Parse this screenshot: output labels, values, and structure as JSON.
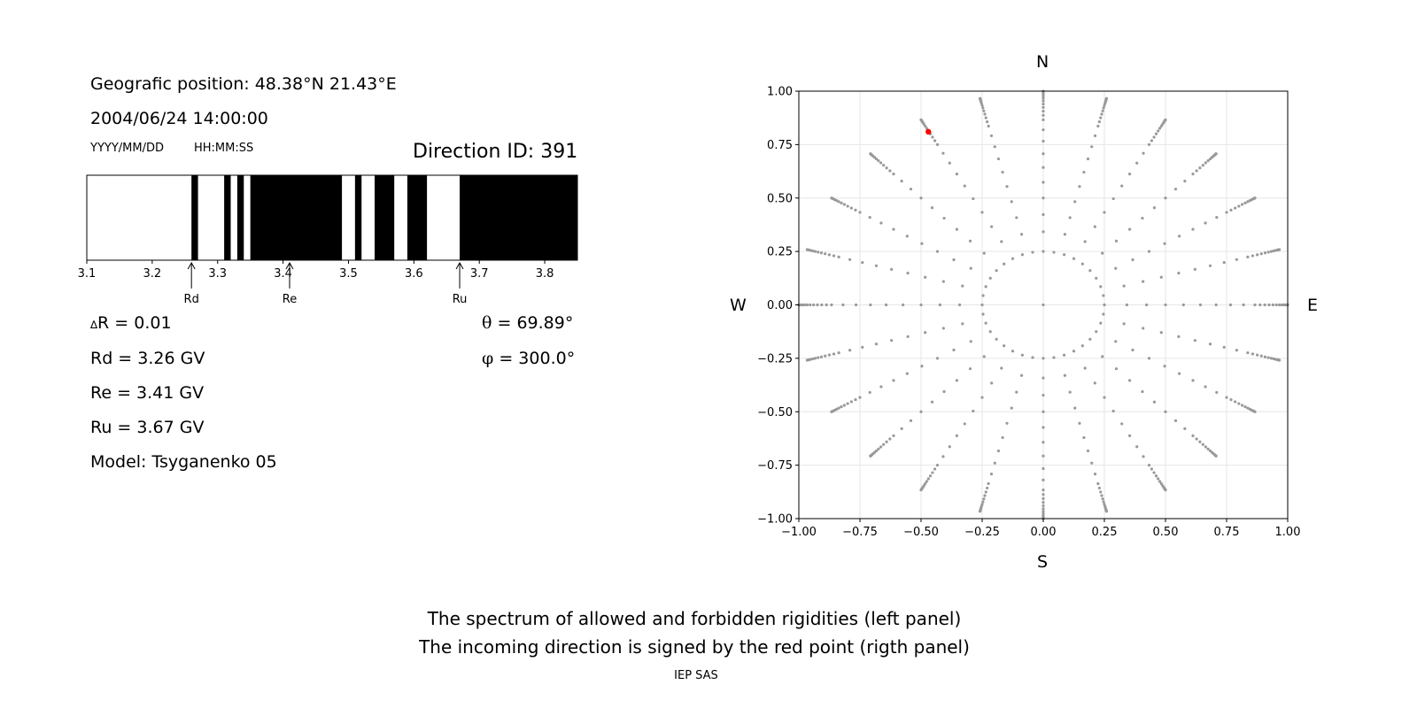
{
  "header": {
    "position": "Geografic position: 48.38°N 21.43°E",
    "datetime": "2004/06/24 14:00:00",
    "date_format": "YYYY/MM/DD",
    "time_format": "HH:MM:SS",
    "direction_id": "Direction ID: 391"
  },
  "params": {
    "delta_symbol": "∆",
    "delta_r": "R = 0.01",
    "rd": "Rd = 3.26 GV",
    "re": "Re = 3.41 GV",
    "ru": "Ru = 3.67 GV",
    "model": "Model: Tsyganenko 05",
    "theta_symbol": "θ",
    "theta": " = 69.89°",
    "phi_symbol": "φ",
    "phi": " = 300.0°"
  },
  "compass": {
    "n": "N",
    "s": "S",
    "w": "W",
    "e": "E"
  },
  "caption": {
    "line1": "The spectrum of allowed and forbidden rigidities (left panel)",
    "line2": "The incoming direction is signed by the red point (rigth panel)",
    "credit": "IEP SAS"
  },
  "colors": {
    "forbidden": "#000000",
    "allowed": "#ffffff",
    "grid_points": "#999999",
    "direction_point": "#ff0000"
  },
  "chart_data": [
    {
      "type": "bar",
      "description_kind": "rigidity spectrum",
      "xlim": [
        3.1,
        3.85
      ],
      "xticks": [
        3.1,
        3.2,
        3.3,
        3.4,
        3.5,
        3.6,
        3.7,
        3.8
      ],
      "forbidden_bands": [
        [
          3.26,
          3.27
        ],
        [
          3.31,
          3.32
        ],
        [
          3.33,
          3.34
        ],
        [
          3.35,
          3.49
        ],
        [
          3.51,
          3.52
        ],
        [
          3.54,
          3.57
        ],
        [
          3.59,
          3.62
        ],
        [
          3.67,
          3.85
        ]
      ],
      "markers": [
        {
          "label": "Rd",
          "value": 3.26
        },
        {
          "label": "Re",
          "value": 3.41
        },
        {
          "label": "Ru",
          "value": 3.67
        }
      ]
    },
    {
      "type": "scatter",
      "xlim": [
        -1.0,
        1.0
      ],
      "ylim": [
        -1.0,
        1.0
      ],
      "xticks": [
        "−1.00",
        "−0.75",
        "−0.50",
        "−0.25",
        "0.00",
        "0.25",
        "0.50",
        "0.75",
        "1.00"
      ],
      "yticks": [
        "1.00",
        "0.75",
        "0.50",
        "0.25",
        "0.00",
        "−0.25",
        "−0.50",
        "−0.75",
        "−1.00"
      ],
      "grid": true,
      "spokes_azimuth_step_deg": 15,
      "grid_point": {
        "x": 0.0,
        "y": 0.0
      },
      "inner_ring_radius": 0.25,
      "direction_point": {
        "x": -0.47,
        "y": 0.81
      }
    }
  ]
}
